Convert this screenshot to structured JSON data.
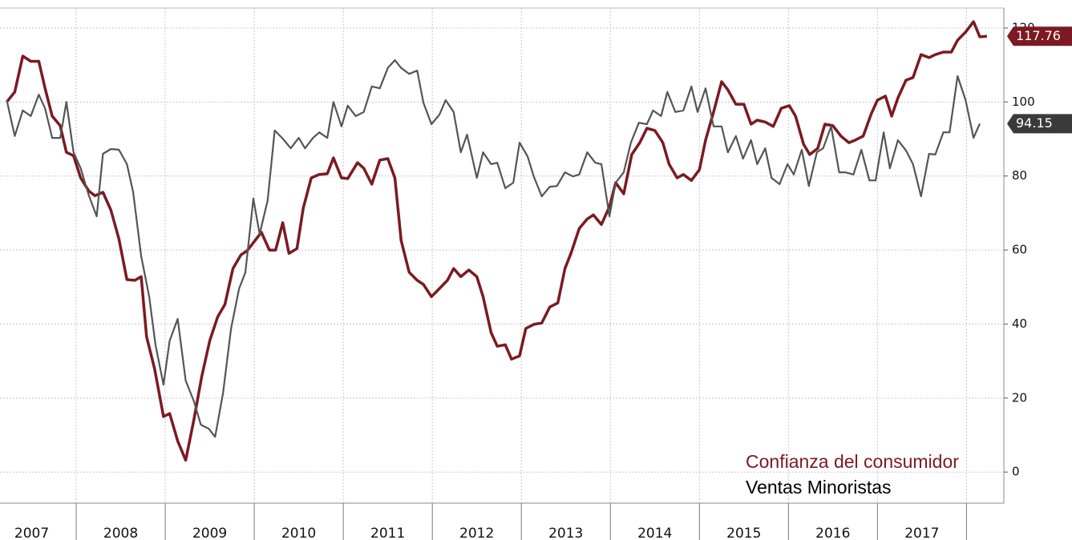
{
  "chart_data": {
    "type": "line",
    "xlim": [
      2007.144,
      2018.42
    ],
    "xticks": [
      2007,
      2008,
      2009,
      2010,
      2011,
      2012,
      2013,
      2014,
      2015,
      2016,
      2017
    ],
    "ylim": [
      -8.4,
      125.4
    ],
    "yticks": [
      0,
      20,
      40,
      60,
      80,
      100,
      120
    ],
    "grid": true,
    "series": [
      {
        "name": "Confianza del consumidor",
        "color": "#7b1a22",
        "x": [
          2007.22,
          2007.31,
          2007.4,
          2007.49,
          2007.58,
          2007.65,
          2007.73,
          2007.82,
          2007.89,
          2007.97,
          2008.05,
          2008.14,
          2008.21,
          2008.3,
          2008.39,
          2008.48,
          2008.57,
          2008.66,
          2008.73,
          2008.79,
          2008.88,
          2008.98,
          2009.05,
          2009.14,
          2009.23,
          2009.32,
          2009.41,
          2009.5,
          2009.59,
          2009.67,
          2009.76,
          2009.85,
          2009.92,
          2010.01,
          2010.08,
          2010.17,
          2010.24,
          2010.32,
          2010.39,
          2010.48,
          2010.55,
          2010.64,
          2010.73,
          2010.82,
          2010.89,
          2010.98,
          2011.05,
          2011.16,
          2011.23,
          2011.32,
          2011.41,
          2011.5,
          2011.58,
          2011.65,
          2011.74,
          2011.83,
          2011.9,
          2011.99,
          2012.08,
          2012.17,
          2012.24,
          2012.32,
          2012.41,
          2012.5,
          2012.57,
          2012.66,
          2012.73,
          2012.82,
          2012.89,
          2012.98,
          2013.05,
          2013.14,
          2013.23,
          2013.32,
          2013.41,
          2013.49,
          2013.56,
          2013.65,
          2013.74,
          2013.81,
          2013.9,
          2013.99,
          2014.06,
          2014.15,
          2014.24,
          2014.33,
          2014.41,
          2014.5,
          2014.59,
          2014.66,
          2014.75,
          2014.82,
          2014.91,
          2015.0,
          2015.07,
          2015.16,
          2015.25,
          2015.32,
          2015.41,
          2015.5,
          2015.58,
          2015.65,
          2015.74,
          2015.83,
          2015.92,
          2016.01,
          2016.08,
          2016.17,
          2016.24,
          2016.33,
          2016.41,
          2016.5,
          2016.59,
          2016.68,
          2016.75,
          2016.84,
          2016.93,
          2017.0,
          2017.09,
          2017.16,
          2017.23,
          2017.32,
          2017.4,
          2017.49,
          2017.58,
          2017.65,
          2017.74,
          2017.83,
          2017.9,
          2017.99,
          2018.08,
          2018.15,
          2018.23
        ],
        "values": [
          100,
          102.7,
          112.4,
          111,
          111,
          103.7,
          96.2,
          93.6,
          86.4,
          85.5,
          79.5,
          76,
          74.7,
          75.6,
          70.8,
          63,
          52,
          51.8,
          52.8,
          36.6,
          27.9,
          15,
          15.8,
          8.4,
          3.2,
          13.9,
          25.8,
          35.5,
          42,
          45.3,
          55,
          58.7,
          59.8,
          62.6,
          64.8,
          60,
          60,
          67.4,
          59.1,
          60.4,
          71.3,
          79.5,
          80.4,
          80.6,
          84.9,
          79.5,
          79.3,
          83.6,
          82.1,
          77.8,
          84.3,
          84.7,
          79.5,
          62.6,
          54,
          51.8,
          50.7,
          47.4,
          49.6,
          51.8,
          55,
          52.8,
          54.6,
          52.8,
          47.4,
          37.7,
          34,
          34.4,
          30.5,
          31.4,
          38.8,
          39.9,
          40.3,
          44.6,
          45.7,
          55,
          59.3,
          65.8,
          68.4,
          69.5,
          66.9,
          71.7,
          78.2,
          75.2,
          85.8,
          89,
          92.9,
          92.3,
          89,
          83.2,
          79.5,
          80.4,
          78.8,
          81.7,
          89.7,
          97.3,
          105.5,
          103.3,
          99.4,
          99.4,
          94,
          95.1,
          94.6,
          93.4,
          98.3,
          99,
          96.2,
          88.6,
          85.8,
          87.5,
          94,
          93.6,
          90.8,
          89,
          89.7,
          90.8,
          96.8,
          100.5,
          101.6,
          96.2,
          101.1,
          105.9,
          106.6,
          112.8,
          112,
          112.8,
          113.5,
          113.5,
          116.7,
          118.9,
          121.7,
          117.6,
          117.76
        ]
      },
      {
        "name": "Ventas Minoristas",
        "color": "#555555",
        "x": [
          2007.22,
          2007.31,
          2007.4,
          2007.49,
          2007.58,
          2007.65,
          2007.73,
          2007.82,
          2007.89,
          2007.97,
          2008.05,
          2008.14,
          2008.23,
          2008.3,
          2008.39,
          2008.48,
          2008.57,
          2008.64,
          2008.73,
          2008.82,
          2008.89,
          2008.98,
          2009.05,
          2009.14,
          2009.23,
          2009.32,
          2009.4,
          2009.49,
          2009.56,
          2009.65,
          2009.74,
          2009.83,
          2009.9,
          2009.99,
          2010.06,
          2010.15,
          2010.23,
          2010.32,
          2010.41,
          2010.5,
          2010.57,
          2010.66,
          2010.73,
          2010.82,
          2010.89,
          2010.98,
          2011.05,
          2011.14,
          2011.23,
          2011.32,
          2011.41,
          2011.5,
          2011.58,
          2011.65,
          2011.74,
          2011.83,
          2011.9,
          2011.99,
          2012.08,
          2012.15,
          2012.24,
          2012.32,
          2012.39,
          2012.5,
          2012.57,
          2012.66,
          2012.73,
          2012.82,
          2012.91,
          2012.98,
          2013.07,
          2013.14,
          2013.23,
          2013.32,
          2013.4,
          2013.49,
          2013.58,
          2013.65,
          2013.74,
          2013.83,
          2013.9,
          2013.99,
          2014.06,
          2014.15,
          2014.23,
          2014.32,
          2014.41,
          2014.48,
          2014.57,
          2014.64,
          2014.73,
          2014.82,
          2014.91,
          2014.98,
          2015.07,
          2015.16,
          2015.25,
          2015.32,
          2015.41,
          2015.49,
          2015.58,
          2015.65,
          2015.74,
          2015.81,
          2015.9,
          2015.99,
          2016.06,
          2016.15,
          2016.23,
          2016.32,
          2016.39,
          2016.48,
          2016.57,
          2016.64,
          2016.73,
          2016.82,
          2016.91,
          2016.98,
          2017.07,
          2017.14,
          2017.23,
          2017.32,
          2017.4,
          2017.49,
          2017.58,
          2017.65,
          2017.74,
          2017.81,
          2017.9,
          2017.99,
          2018.08,
          2018.15
        ],
        "values": [
          100.5,
          90.8,
          97.7,
          96.2,
          102,
          98.3,
          90.3,
          90.3,
          100,
          86.4,
          82.1,
          74.9,
          69.1,
          86,
          87.3,
          87.1,
          83.2,
          75.6,
          58.3,
          47.4,
          34.4,
          23.6,
          35.5,
          41.4,
          24.7,
          19.3,
          12.8,
          11.7,
          9.5,
          21.4,
          38.8,
          49.6,
          53.9,
          73.9,
          64.3,
          73.4,
          92.3,
          90.1,
          87.5,
          90.3,
          87.5,
          90.3,
          91.8,
          90.3,
          100,
          93.4,
          99,
          96.2,
          97.3,
          104.2,
          103.7,
          109.2,
          111.3,
          109.2,
          107.6,
          108.5,
          99.8,
          94,
          96.6,
          100.5,
          97.3,
          86.4,
          91.2,
          79.5,
          86.4,
          83.2,
          83.6,
          76.7,
          78.2,
          89,
          85.3,
          79.9,
          74.5,
          77.1,
          77.3,
          81,
          79.9,
          80.4,
          86.4,
          83.6,
          83.2,
          69.1,
          78.2,
          81,
          89,
          94.4,
          94,
          97.7,
          96.2,
          102.7,
          97.3,
          97.7,
          104.2,
          97.3,
          103.7,
          93.4,
          93.4,
          86.4,
          90.8,
          84.7,
          89.7,
          83.2,
          87.5,
          79.5,
          77.8,
          83.2,
          80.4,
          87.1,
          77.3,
          86.4,
          87.5,
          93.4,
          81,
          81,
          80.4,
          87.1,
          78.8,
          78.8,
          91.8,
          82.1,
          89.7,
          86.9,
          83.2,
          74.5,
          86,
          85.8,
          91.8,
          91.8,
          107,
          100.5,
          90.3,
          94.15
        ]
      }
    ]
  }
}
